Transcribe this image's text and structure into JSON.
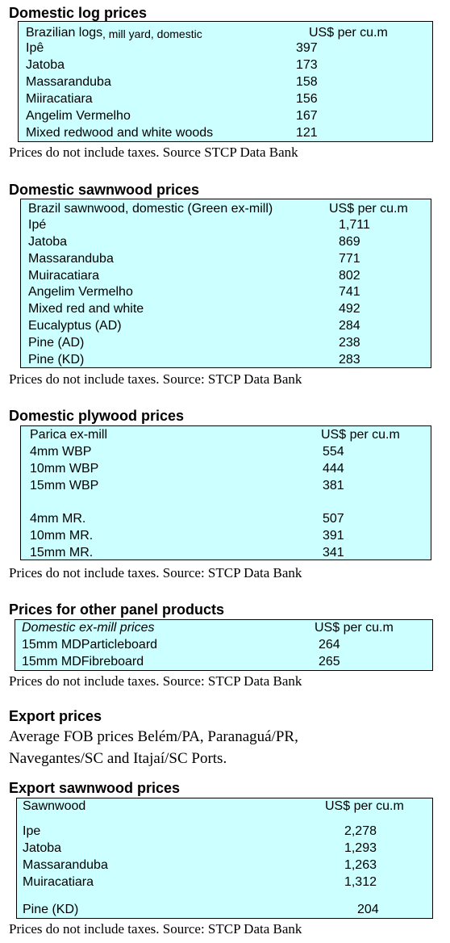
{
  "sections": [
    {
      "title": "Domestic log prices",
      "header": {
        "label": "Brazilian logs",
        "qualifier": ", mill yard, domestic",
        "unit": "US$ per cu.m"
      },
      "rows": [
        [
          "Ipê",
          "397"
        ],
        [
          "Jatoba",
          "173"
        ],
        [
          "Massaranduba",
          "158"
        ],
        [
          "Miiracatiara",
          "156"
        ],
        [
          "Angelim Vermelho",
          "167"
        ],
        [
          "Mixed redwood and white woods",
          "121"
        ]
      ],
      "note": "Prices do not include taxes. Source STCP Data Bank"
    },
    {
      "title": "Domestic sawnwood prices",
      "header": {
        "label": "Brazil sawnwood, domestic (Green ex-mill)",
        "unit": "US$ per cu.m"
      },
      "rows": [
        [
          "Ipé",
          "1,711"
        ],
        [
          "Jatoba",
          "869"
        ],
        [
          "Massaranduba",
          "771"
        ],
        [
          "Muiracatiara",
          "802"
        ],
        [
          "Angelim Vermelho",
          "741"
        ],
        [
          "Mixed red and white",
          "492"
        ],
        [
          "Eucalyptus (AD)",
          "284"
        ],
        [
          "Pine (AD)",
          "238"
        ],
        [
          "Pine (KD)",
          "283"
        ]
      ],
      "note": "Prices do not include taxes. Source: STCP Data Bank"
    },
    {
      "title": "Domestic plywood prices",
      "header": {
        "label": "Parica ex-mill",
        "unit": "US$ per cu.m"
      },
      "rows": [
        [
          "4mm WBP",
          "554"
        ],
        [
          "10mm WBP",
          "444"
        ],
        [
          "15mm WBP",
          "381"
        ],
        [
          "4mm MR.",
          "507"
        ],
        [
          "10mm MR.",
          "391"
        ],
        [
          "15mm MR.",
          "341"
        ]
      ],
      "note": "Prices do not include taxes. Source: STCP Data Bank"
    },
    {
      "title": "Prices for other panel products",
      "header": {
        "label": "Domestic ex-mill prices",
        "unit": "US$ per cu.m"
      },
      "rows": [
        [
          "15mm MDParticleboard",
          "264"
        ],
        [
          "15mm MDFibreboard",
          "265"
        ]
      ],
      "note": "Prices do not include taxes. Source: STCP Data Bank"
    },
    {
      "title": "Export sawnwood prices",
      "header": {
        "label": "Sawnwood",
        "unit": "US$ per cu.m"
      },
      "rows": [
        [
          "Ipe",
          "2,278"
        ],
        [
          "Jatoba",
          "1,293"
        ],
        [
          "Massaranduba",
          "1,263"
        ],
        [
          "Muiracatiara",
          "1,312"
        ],
        [
          "Pine (KD)",
          "204"
        ]
      ],
      "note": "Prices do not include taxes. Source: STCP Data Bank"
    }
  ],
  "export_prices": {
    "title": "Export prices",
    "text": "Average FOB prices Belém/PA, Paranaguá/PR, Navegantes/SC and Itajaí/SC Ports."
  }
}
